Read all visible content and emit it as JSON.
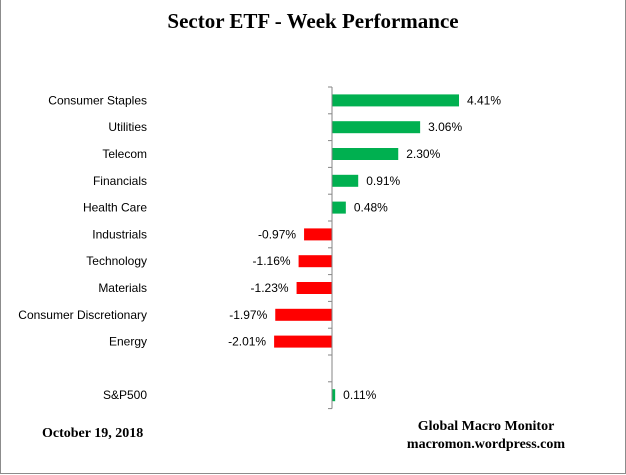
{
  "chart_data": {
    "type": "bar",
    "orientation": "horizontal",
    "title": "Sector ETF - Week Performance",
    "categories": [
      "Consumer Staples",
      "Utilities",
      "Telecom",
      "Financials",
      "Health Care",
      "Industrials",
      "Technology",
      "Materials",
      "Consumer Discretionary",
      "Energy",
      "",
      "S&P500"
    ],
    "values": [
      4.41,
      3.06,
      2.3,
      0.91,
      0.48,
      -0.97,
      -1.16,
      -1.23,
      -1.97,
      -2.01,
      null,
      0.11
    ],
    "data_labels": [
      "4.41%",
      "3.06%",
      "2.30%",
      "0.91%",
      "0.48%",
      "-0.97%",
      "-1.16%",
      "-1.23%",
      "-1.97%",
      "-2.01%",
      "",
      "0.11%"
    ],
    "colors": {
      "positive": "#00b050",
      "negative": "#ff0000"
    },
    "xlabel": "",
    "ylabel": "",
    "grid": false,
    "legend": "none"
  },
  "footer": {
    "date": "October 19, 2018",
    "source_name": "Global Macro Monitor",
    "source_url": "macromon.wordpress.com"
  }
}
